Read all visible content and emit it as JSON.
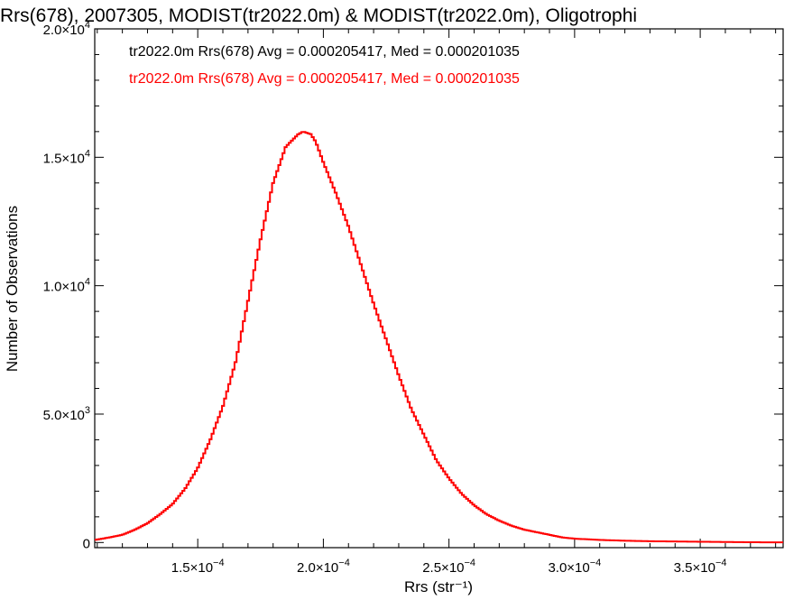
{
  "chart_data": {
    "type": "histogram",
    "title": "Rrs(678), 2007305, MODIST(tr2022.0m) & MODIST(tr2022.0m), Oligotrophi",
    "xlabel": "Rrs (str⁻¹)",
    "ylabel": "Number of Observations",
    "xlim": [
      0.000109,
      0.000383
    ],
    "ylim": [
      -200,
      20000
    ],
    "x_ticks": [
      {
        "value": 0.00015,
        "mant": "1.5",
        "exp": "−4"
      },
      {
        "value": 0.0002,
        "mant": "2.0",
        "exp": "−4"
      },
      {
        "value": 0.00025,
        "mant": "2.5",
        "exp": "−4"
      },
      {
        "value": 0.0003,
        "mant": "3.0",
        "exp": "−4"
      },
      {
        "value": 0.00035,
        "mant": "3.5",
        "exp": "−4"
      }
    ],
    "y_ticks": [
      {
        "value": 0,
        "mant": "0",
        "exp": ""
      },
      {
        "value": 5000,
        "mant": "5.0",
        "exp": "3"
      },
      {
        "value": 10000,
        "mant": "1.0",
        "exp": "4"
      },
      {
        "value": 15000,
        "mant": "1.5",
        "exp": "4"
      },
      {
        "value": 20000,
        "mant": "2.0",
        "exp": "4"
      }
    ],
    "legend": [
      {
        "text": "tr2022.0m Rrs(678) Avg = 0.000205417, Med = 0.000201035",
        "color": "#000000"
      },
      {
        "text": "tr2022.0m Rrs(678) Avg = 0.000205417, Med = 0.000201035",
        "color": "#ff0000"
      }
    ],
    "series": [
      {
        "color": "#ff0000",
        "x": [
          0.000109,
          0.000115,
          0.00012,
          0.000125,
          0.00013,
          0.000135,
          0.00014,
          0.000145,
          0.00015,
          0.000155,
          0.00016,
          0.000165,
          0.00017,
          0.000175,
          0.00018,
          0.000185,
          0.00019,
          0.000192,
          0.000195,
          0.000197,
          0.0002,
          0.000205,
          0.00021,
          0.000215,
          0.00022,
          0.000225,
          0.00023,
          0.000235,
          0.00024,
          0.000245,
          0.00025,
          0.000255,
          0.00026,
          0.000265,
          0.00027,
          0.000275,
          0.00028,
          0.000285,
          0.00029,
          0.000295,
          0.0003,
          0.00031,
          0.00032,
          0.00033,
          0.00034,
          0.00035,
          0.00036,
          0.00037,
          0.000383
        ],
        "y": [
          100,
          200,
          300,
          500,
          750,
          1100,
          1500,
          2100,
          2900,
          4000,
          5300,
          7000,
          9400,
          11800,
          14000,
          15400,
          15900,
          16000,
          15900,
          15600,
          14800,
          13600,
          12300,
          10800,
          9300,
          7900,
          6500,
          5200,
          4200,
          3200,
          2500,
          1900,
          1450,
          1100,
          850,
          650,
          500,
          400,
          300,
          200,
          150,
          100,
          70,
          50,
          40,
          30,
          20,
          10,
          5
        ]
      }
    ]
  }
}
